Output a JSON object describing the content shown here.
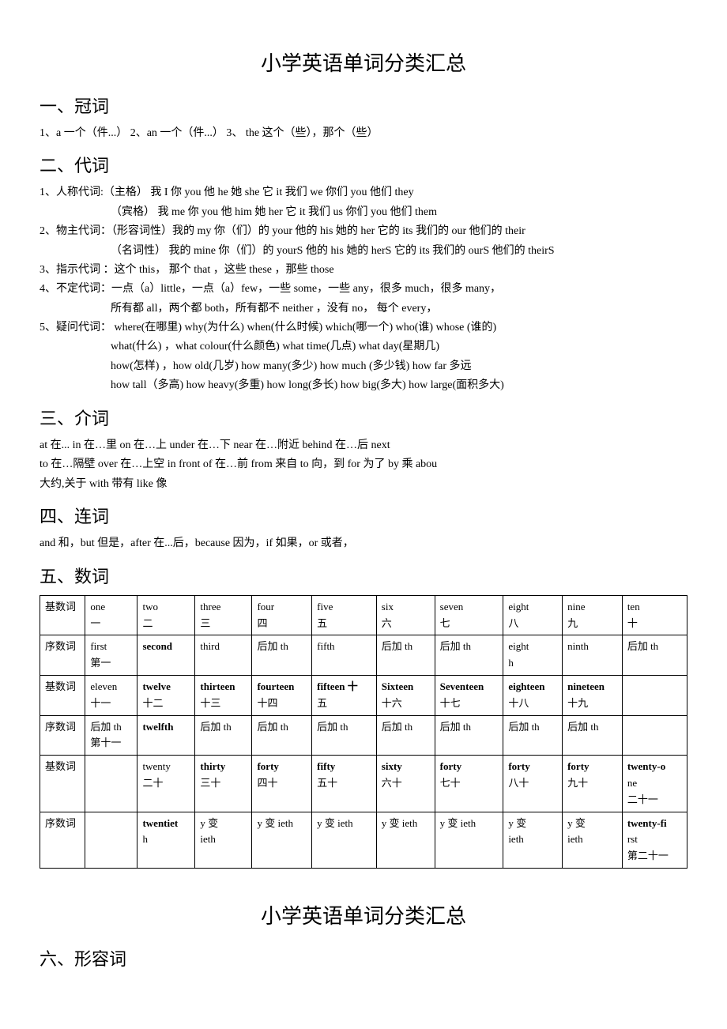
{
  "title": "小学英语单词分类汇总",
  "sec1": {
    "heading": "一、冠词",
    "line1": "1、a 一个（件...）  2、an 一个（件...）  3、 the 这个（些），那个（些）"
  },
  "sec2": {
    "heading": "二、代词",
    "l1": "1、人称代词:（主格） 我  I       你 you     他 he     她 she    它 it     我们 we     你们 you     他们 they",
    "l2": "（宾格） 我  me    你 you    他 him    她 her    它 it    我们 us    你们 you    他们 them",
    "l3": "2、物主代词：（形容词性）我的 my   你（们）的 your 他的 his    她的 her   它的 its   我们的 our   他们的 their",
    "l4": "（名词性） 我的 mine 你（们）的 yourS 他的 his   她的 herS 它的 its   我们的 ourS 他们的 theirS",
    "l5": "3、指示代词 ：这个 this，  那个 that ，这些 these ，那些 those",
    "l6": "4、不定代词：一点（a）little，一点（a）few，一些 some，一些 any，很多 much，很多 many，",
    "l7": "所有都 all，两个都 both，所有都不 neither ，没有 no，  每个 every，",
    "l8": "5、疑问代词：  where(在哪里)    why(为什么)    when(什么时候)    which(哪一个)    who(谁)     whose (谁的)",
    "l9": "what(什么) ，what colour(什么颜色)        what time(几点)         what day(星期几)",
    "l10": "how(怎样) ，how old(几岁)   how many(多少)      how much (多少钱)     how far  多远",
    "l11": "how tall（多高)      how heavy(多重)   how long(多长)       how big(多大)   how large(面积多大)"
  },
  "sec3": {
    "heading": "三、介词",
    "l1": "at 在...   in 在…里   on 在…上   under 在…下   near 在…附近    behind 在…后   next",
    "l2": "to 在…隔壁   over 在…上空   in front of 在…前   from 来自   to 向，到   for 为了 by 乘   abou",
    "l3": "大约,关于   with 带有   like 像"
  },
  "sec4": {
    "heading": "四、连词",
    "l1": "and 和，but 但是，after 在...后，because 因为，if 如果，or 或者，"
  },
  "sec5": {
    "heading": "五、数词",
    "rows": [
      [
        "基数词",
        "one\n一",
        "two\n二",
        "three\n三",
        "four\n四",
        "five\n五",
        "six\n六",
        "seven\n七",
        "eight\n八",
        "nine\n九",
        "ten\n十"
      ],
      [
        "序数词",
        "first\n第一",
        "second",
        "third",
        "后加 th",
        "fifth",
        "后加 th",
        "后加 th",
        "eight\nh",
        "ninth",
        "后加 th"
      ],
      [
        "基数词",
        "eleven\n十一",
        "twelve\n十二",
        "thirteen\n十三",
        "fourteen\n十四",
        "fifteen 十\n五",
        "Sixteen\n十六",
        "Seventeen\n十七",
        "eighteen\n十八",
        "nineteen\n十九",
        ""
      ],
      [
        "序数词",
        "后加 th\n第十一",
        "twelfth",
        "后加 th",
        "后加 th",
        "后加 th",
        "后加 th",
        "后加 th",
        "后加 th",
        "后加 th",
        ""
      ],
      [
        "基数词",
        "",
        "twenty\n二十",
        "thirty\n三十",
        "forty\n四十",
        "fifty\n五十",
        "sixty\n六十",
        "forty\n七十",
        "forty\n八十",
        "forty\n九十",
        "twenty-o\nne\n二十一"
      ],
      [
        "序数词",
        "",
        "twentiet\nh",
        "y    变\nieth",
        "y 变 ieth",
        "y 变 ieth",
        "y 变 ieth",
        "y 变 ieth",
        "y    变\nieth",
        "y    变\nieth",
        "twenty-fi\nrst\n第二十一"
      ]
    ],
    "bold_cells": [
      [
        1,
        2
      ],
      [
        2,
        2
      ],
      [
        2,
        3
      ],
      [
        2,
        4
      ],
      [
        2,
        5
      ],
      [
        2,
        6
      ],
      [
        2,
        7
      ],
      [
        2,
        8
      ],
      [
        2,
        9
      ],
      [
        3,
        2
      ],
      [
        4,
        3
      ],
      [
        4,
        4
      ],
      [
        4,
        5
      ],
      [
        4,
        6
      ],
      [
        4,
        7
      ],
      [
        4,
        8
      ],
      [
        4,
        9
      ],
      [
        4,
        10
      ],
      [
        5,
        2
      ],
      [
        5,
        10
      ]
    ]
  },
  "title2": "小学英语单词分类汇总",
  "sec6": {
    "heading": "六、形容词"
  }
}
